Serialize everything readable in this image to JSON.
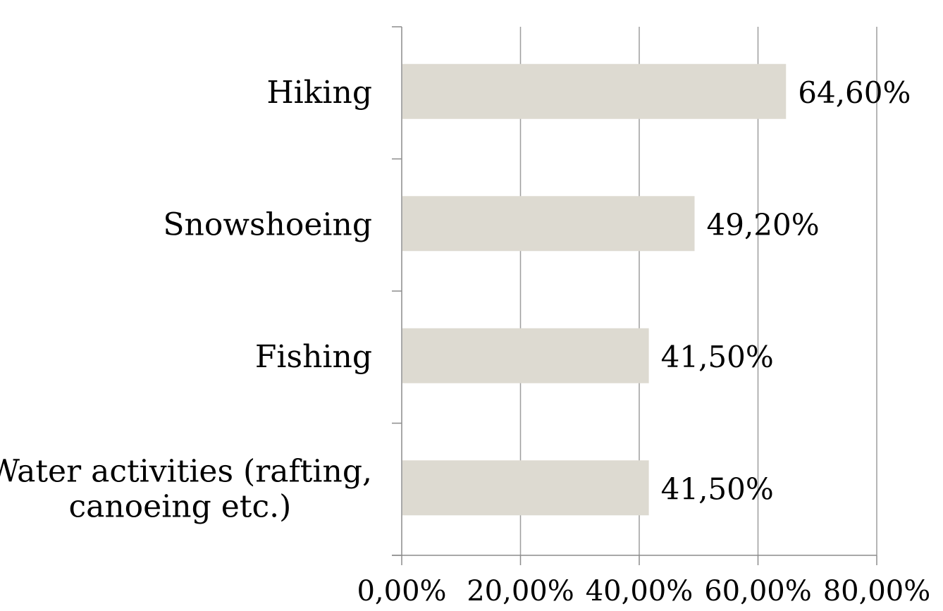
{
  "chart_data": {
    "type": "bar",
    "orientation": "horizontal",
    "categories": [
      [
        "Hiking"
      ],
      [
        "Snowshoeing"
      ],
      [
        "Fishing"
      ],
      [
        "Water activities (rafting,",
        "canoeing etc.)"
      ]
    ],
    "values": [
      64.6,
      49.2,
      41.5,
      41.5
    ],
    "value_labels": [
      "64,60%",
      "49,20%",
      "41,50%",
      "41,50%"
    ],
    "xlim": [
      0,
      80
    ],
    "xticks": [
      0,
      20,
      40,
      60,
      80
    ],
    "xtick_labels": [
      "0,00%",
      "20,00%",
      "40,00%",
      "60,00%",
      "80,00%"
    ],
    "grid": true,
    "legend": "none",
    "colors": {
      "bar": "#dddad1",
      "grid": "#9e9e9e",
      "axis": "#8c8c8c"
    }
  }
}
